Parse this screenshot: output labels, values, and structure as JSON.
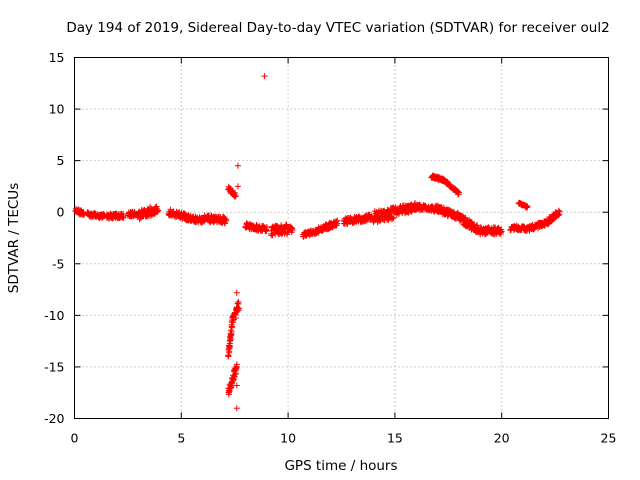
{
  "chart_data": {
    "type": "scatter",
    "title": "Day 194 of 2019, Sidereal Day-to-day VTEC variation (SDTVAR) for receiver oul2",
    "xlabel": "GPS time / hours",
    "ylabel": "SDTVAR / TECUs",
    "xlim": [
      0,
      25
    ],
    "ylim": [
      -20,
      15
    ],
    "xticks": [
      0,
      5,
      10,
      15,
      20,
      25
    ],
    "yticks": [
      -20,
      -15,
      -10,
      -5,
      0,
      5,
      10,
      15
    ],
    "grid": true,
    "marker": "+",
    "series": [
      {
        "name": "SDTVAR",
        "color": "#ff0000",
        "segments": [
          {
            "t0": 0.05,
            "t1": 0.45,
            "y0": 0.1,
            "y1": -0.1,
            "amp": 0.25
          },
          {
            "t0": 0.6,
            "t1": 1.4,
            "y0": -0.2,
            "y1": -0.4,
            "amp": 0.25
          },
          {
            "t0": 1.5,
            "t1": 2.3,
            "y0": -0.4,
            "y1": -0.3,
            "amp": 0.25
          },
          {
            "t0": 2.5,
            "t1": 3.0,
            "y0": -0.2,
            "y1": -0.1,
            "amp": 0.25
          },
          {
            "t0": 3.0,
            "t1": 3.9,
            "y0": -0.3,
            "y1": 0.3,
            "amp": 0.45
          },
          {
            "t0": 4.4,
            "t1": 5.2,
            "y0": 0.0,
            "y1": -0.4,
            "amp": 0.3
          },
          {
            "t0": 5.2,
            "t1": 6.1,
            "y0": -0.5,
            "y1": -0.8,
            "amp": 0.3
          },
          {
            "t0": 6.1,
            "t1": 7.1,
            "y0": -0.6,
            "y1": -0.8,
            "amp": 0.35
          },
          {
            "t0": 7.2,
            "t1": 7.4,
            "y0": -13.8,
            "y1": -10.5,
            "amp": 0.5
          },
          {
            "t0": 7.4,
            "t1": 7.7,
            "y0": -10.5,
            "y1": -9.0,
            "amp": 0.5
          },
          {
            "t0": 7.2,
            "t1": 7.6,
            "y0": -17.4,
            "y1": -15.0,
            "amp": 0.4
          },
          {
            "t0": 7.2,
            "t1": 7.55,
            "y0": 2.3,
            "y1": 1.6,
            "amp": 0.2
          },
          {
            "t0": 8.0,
            "t1": 9.0,
            "y0": -1.3,
            "y1": -1.6,
            "amp": 0.3
          },
          {
            "t0": 9.2,
            "t1": 10.2,
            "y0": -1.8,
            "y1": -1.6,
            "amp": 0.5
          },
          {
            "t0": 10.7,
            "t1": 11.4,
            "y0": -2.2,
            "y1": -1.8,
            "amp": 0.25
          },
          {
            "t0": 11.4,
            "t1": 12.3,
            "y0": -1.8,
            "y1": -1.0,
            "amp": 0.3
          },
          {
            "t0": 12.6,
            "t1": 13.9,
            "y0": -0.9,
            "y1": -0.5,
            "amp": 0.3
          },
          {
            "t0": 14.0,
            "t1": 15.0,
            "y0": -0.5,
            "y1": 0.0,
            "amp": 0.6
          },
          {
            "t0": 15.0,
            "t1": 16.0,
            "y0": 0.1,
            "y1": 0.5,
            "amp": 0.4
          },
          {
            "t0": 16.0,
            "t1": 17.2,
            "y0": 0.5,
            "y1": 0.3,
            "amp": 0.3
          },
          {
            "t0": 17.2,
            "t1": 18.2,
            "y0": 0.2,
            "y1": -0.6,
            "amp": 0.35
          },
          {
            "t0": 18.2,
            "t1": 19.0,
            "y0": -0.8,
            "y1": -1.8,
            "amp": 0.4
          },
          {
            "t0": 19.0,
            "t1": 20.0,
            "y0": -1.8,
            "y1": -1.8,
            "amp": 0.35
          },
          {
            "t0": 20.4,
            "t1": 21.4,
            "y0": -1.5,
            "y1": -1.6,
            "amp": 0.25
          },
          {
            "t0": 21.4,
            "t1": 22.2,
            "y0": -1.5,
            "y1": -1.0,
            "amp": 0.25
          },
          {
            "t0": 22.2,
            "t1": 22.7,
            "y0": -0.8,
            "y1": 0.0,
            "amp": 0.3
          },
          {
            "t0": 16.7,
            "t1": 17.3,
            "y0": 3.5,
            "y1": 3.1,
            "amp": 0.15
          },
          {
            "t0": 17.3,
            "t1": 18.0,
            "y0": 3.1,
            "y1": 1.8,
            "amp": 0.15
          },
          {
            "t0": 20.8,
            "t1": 21.2,
            "y0": 0.9,
            "y1": 0.5,
            "amp": 0.1
          }
        ],
        "points": [
          [
            8.9,
            13.2
          ],
          [
            7.65,
            4.5
          ],
          [
            7.65,
            2.5
          ],
          [
            7.6,
            -7.8
          ],
          [
            7.6,
            -16.8
          ],
          [
            7.6,
            -19.0
          ]
        ]
      }
    ]
  }
}
